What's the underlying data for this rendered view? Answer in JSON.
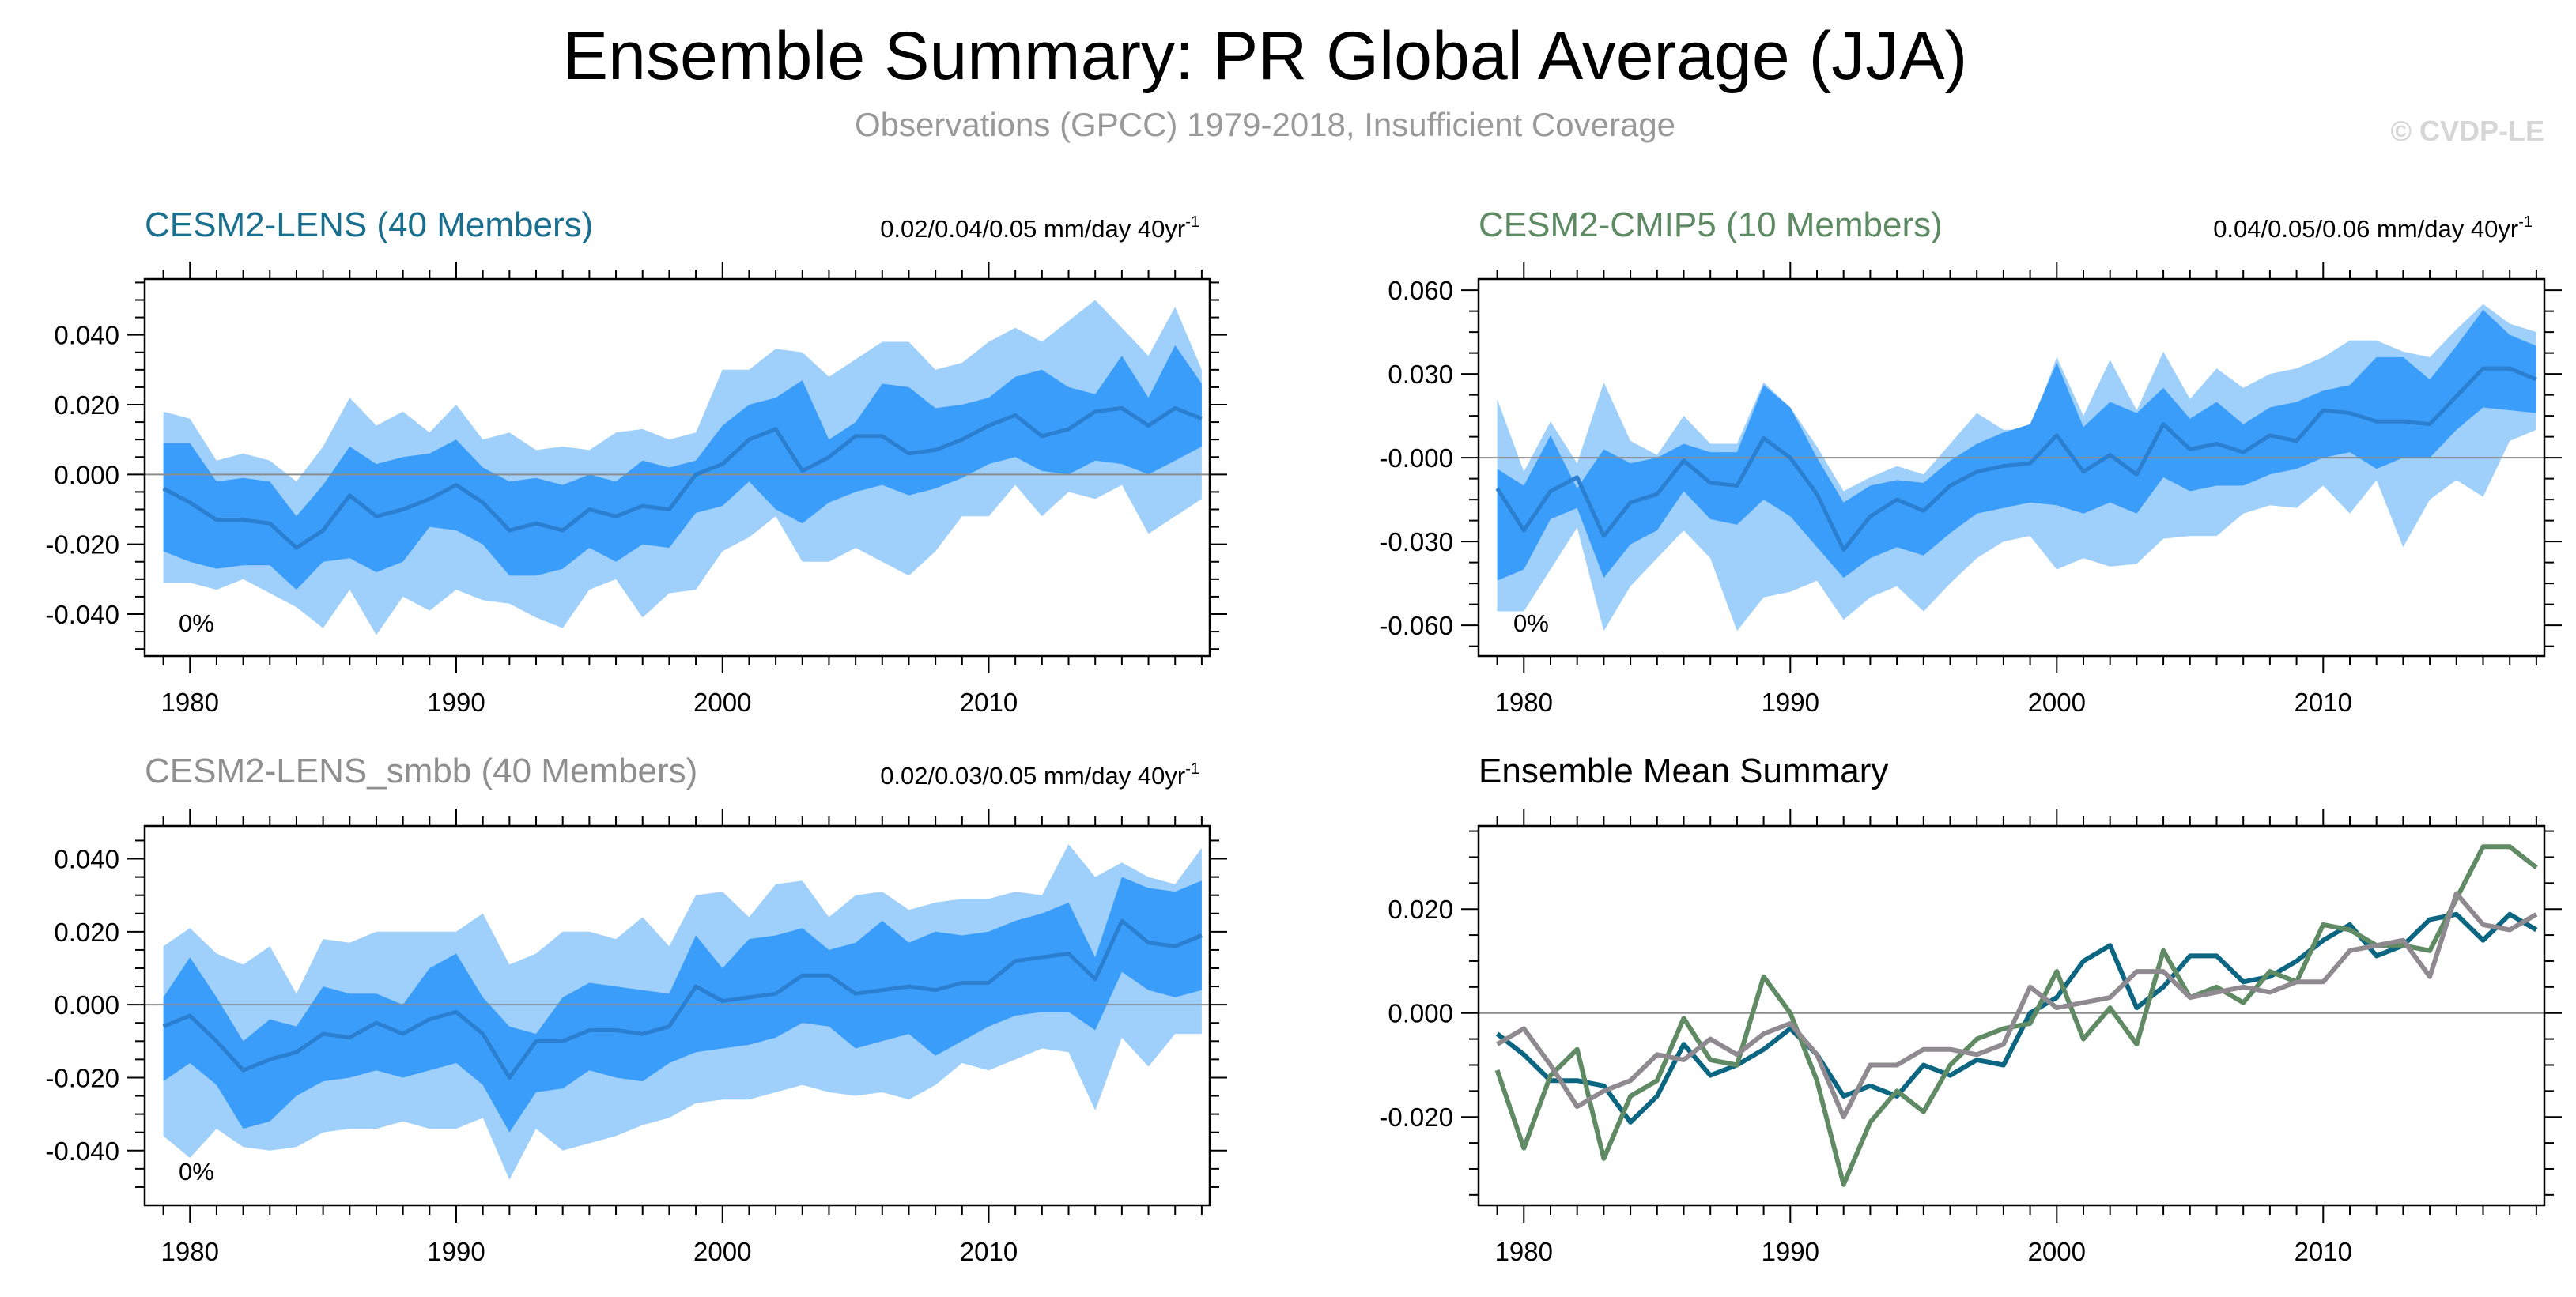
{
  "header": {
    "title": "Ensemble Summary: PR Global Average (JJA)",
    "subtitle": "Observations (GPCC) 1979-2018, Insufficient Coverage",
    "watermark": "© CVDP-LE"
  },
  "colors": {
    "cesm2_lens": "#1a6f8e",
    "cesm2_cmip5": "#5e8a63",
    "cesm2_lens_smbb": "#8f8f8f",
    "outer_band": "#9fd0fb",
    "inner_band": "#3b9dfa",
    "mean_line": "#2a7fd0",
    "mean_cesm2_lens": "#0c6682",
    "mean_cesm2_cmip5": "#5f8a63",
    "mean_cesm2_lens_smbb": "#8f8a8f"
  },
  "chart_data": [
    {
      "type": "area",
      "title": "CESM2-LENS (40 Members)",
      "stat_text": "0.02/0.04/0.05 mm/day 40yr",
      "stat_sup": "-1",
      "pct_text": "0%",
      "xlim": [
        1978.3,
        2018.3
      ],
      "ylim": [
        -0.052,
        0.056
      ],
      "xticks": [
        1980,
        1990,
        2000,
        2010
      ],
      "xtick_labels": [
        "1980",
        "1990",
        "2000",
        "2010"
      ],
      "yticks": [
        -0.04,
        -0.02,
        0.0,
        0.02,
        0.04
      ],
      "ytick_labels": [
        "-0.040",
        "-0.020",
        "0.000",
        "0.020",
        "0.040"
      ],
      "x": [
        1979,
        1980,
        1981,
        1982,
        1983,
        1984,
        1985,
        1986,
        1987,
        1988,
        1989,
        1990,
        1991,
        1992,
        1993,
        1994,
        1995,
        1996,
        1997,
        1998,
        1999,
        2000,
        2001,
        2002,
        2003,
        2004,
        2005,
        2006,
        2007,
        2008,
        2009,
        2010,
        2011,
        2012,
        2013,
        2014,
        2015,
        2016,
        2017,
        2018
      ],
      "outer_upper": [
        0.018,
        0.016,
        0.004,
        0.006,
        0.004,
        -0.002,
        0.008,
        0.022,
        0.014,
        0.018,
        0.012,
        0.02,
        0.01,
        0.012,
        0.007,
        0.008,
        0.007,
        0.012,
        0.013,
        0.01,
        0.012,
        0.03,
        0.03,
        0.036,
        0.035,
        0.028,
        0.033,
        0.038,
        0.038,
        0.03,
        0.032,
        0.038,
        0.042,
        0.038,
        0.044,
        0.05,
        0.042,
        0.034,
        0.048,
        0.03
      ],
      "inner_upper": [
        0.009,
        0.009,
        -0.002,
        -0.001,
        -0.002,
        -0.012,
        -0.003,
        0.008,
        0.003,
        0.005,
        0.006,
        0.01,
        0.002,
        -0.002,
        -0.001,
        -0.003,
        0.0,
        -0.002,
        0.004,
        0.002,
        0.004,
        0.014,
        0.02,
        0.022,
        0.027,
        0.01,
        0.015,
        0.026,
        0.025,
        0.019,
        0.02,
        0.022,
        0.028,
        0.03,
        0.025,
        0.023,
        0.034,
        0.022,
        0.037,
        0.026
      ],
      "mean": [
        -0.004,
        -0.008,
        -0.013,
        -0.013,
        -0.014,
        -0.021,
        -0.016,
        -0.006,
        -0.012,
        -0.01,
        -0.007,
        -0.003,
        -0.008,
        -0.016,
        -0.014,
        -0.016,
        -0.01,
        -0.012,
        -0.009,
        -0.01,
        0.0,
        0.003,
        0.01,
        0.013,
        0.001,
        0.005,
        0.011,
        0.011,
        0.006,
        0.007,
        0.01,
        0.014,
        0.017,
        0.011,
        0.013,
        0.018,
        0.019,
        0.014,
        0.019,
        0.016
      ],
      "inner_lower": [
        -0.022,
        -0.025,
        -0.027,
        -0.026,
        -0.026,
        -0.033,
        -0.025,
        -0.024,
        -0.028,
        -0.025,
        -0.015,
        -0.016,
        -0.02,
        -0.029,
        -0.029,
        -0.027,
        -0.021,
        -0.025,
        -0.02,
        -0.021,
        -0.011,
        -0.009,
        -0.002,
        -0.01,
        -0.014,
        -0.008,
        -0.005,
        -0.003,
        -0.006,
        -0.004,
        -0.001,
        0.003,
        0.005,
        0.001,
        0.0,
        0.004,
        0.003,
        0.0,
        0.004,
        0.008
      ],
      "outer_lower": [
        -0.031,
        -0.031,
        -0.033,
        -0.03,
        -0.034,
        -0.038,
        -0.044,
        -0.033,
        -0.046,
        -0.035,
        -0.039,
        -0.033,
        -0.036,
        -0.037,
        -0.041,
        -0.044,
        -0.033,
        -0.03,
        -0.041,
        -0.034,
        -0.033,
        -0.022,
        -0.018,
        -0.012,
        -0.025,
        -0.025,
        -0.021,
        -0.025,
        -0.029,
        -0.022,
        -0.012,
        -0.012,
        -0.003,
        -0.012,
        -0.005,
        -0.007,
        -0.003,
        -0.017,
        -0.012,
        -0.007
      ]
    },
    {
      "type": "area",
      "title": "CESM2-CMIP5 (10 Members)",
      "stat_text": "0.04/0.05/0.06 mm/day 40yr",
      "stat_sup": "-1",
      "pct_text": "0%",
      "xlim": [
        1978.3,
        2018.3
      ],
      "ylim": [
        -0.071,
        0.064
      ],
      "xticks": [
        1980,
        1990,
        2000,
        2010
      ],
      "xtick_labels": [
        "1980",
        "1990",
        "2000",
        "2010"
      ],
      "yticks": [
        -0.06,
        -0.03,
        0.0,
        0.03,
        0.06
      ],
      "ytick_labels": [
        "-0.060",
        "-0.030",
        "-0.000",
        "0.030",
        "0.060"
      ],
      "x": [
        1979,
        1980,
        1981,
        1982,
        1983,
        1984,
        1985,
        1986,
        1987,
        1988,
        1989,
        1990,
        1991,
        1992,
        1993,
        1994,
        1995,
        1996,
        1997,
        1998,
        1999,
        2000,
        2001,
        2002,
        2003,
        2004,
        2005,
        2006,
        2007,
        2008,
        2009,
        2010,
        2011,
        2012,
        2013,
        2014,
        2015,
        2016,
        2017,
        2018
      ],
      "outer_upper": [
        0.021,
        -0.005,
        0.013,
        -0.002,
        0.027,
        0.006,
        0.001,
        0.015,
        0.005,
        0.005,
        0.027,
        0.018,
        0.004,
        -0.012,
        -0.007,
        -0.003,
        -0.006,
        0.005,
        0.016,
        0.01,
        0.01,
        0.036,
        0.015,
        0.035,
        0.017,
        0.038,
        0.021,
        0.032,
        0.025,
        0.03,
        0.032,
        0.036,
        0.042,
        0.042,
        0.038,
        0.036,
        0.046,
        0.055,
        0.048,
        0.045
      ],
      "inner_upper": [
        -0.004,
        -0.01,
        0.008,
        -0.011,
        0.003,
        -0.002,
        0.0,
        0.005,
        0.002,
        0.002,
        0.026,
        0.018,
        0.0,
        -0.016,
        -0.01,
        -0.008,
        -0.009,
        -0.001,
        0.005,
        0.009,
        0.012,
        0.034,
        0.011,
        0.02,
        0.016,
        0.025,
        0.014,
        0.02,
        0.012,
        0.018,
        0.02,
        0.024,
        0.026,
        0.036,
        0.036,
        0.028,
        0.04,
        0.053,
        0.044,
        0.04
      ],
      "mean": [
        -0.011,
        -0.026,
        -0.012,
        -0.007,
        -0.028,
        -0.016,
        -0.013,
        -0.001,
        -0.009,
        -0.01,
        0.007,
        0.0,
        -0.013,
        -0.033,
        -0.021,
        -0.015,
        -0.019,
        -0.01,
        -0.005,
        -0.003,
        -0.002,
        0.008,
        -0.005,
        0.001,
        -0.006,
        0.012,
        0.003,
        0.005,
        0.002,
        0.008,
        0.006,
        0.017,
        0.016,
        0.013,
        0.013,
        0.012,
        0.022,
        0.032,
        0.032,
        0.028
      ],
      "inner_lower": [
        -0.044,
        -0.04,
        -0.022,
        -0.018,
        -0.043,
        -0.031,
        -0.026,
        -0.012,
        -0.022,
        -0.024,
        -0.015,
        -0.021,
        -0.032,
        -0.043,
        -0.036,
        -0.032,
        -0.035,
        -0.027,
        -0.02,
        -0.018,
        -0.016,
        -0.017,
        -0.02,
        -0.016,
        -0.02,
        -0.007,
        -0.012,
        -0.01,
        -0.01,
        -0.006,
        -0.004,
        0.0,
        0.002,
        -0.004,
        0.0,
        0.0,
        0.01,
        0.018,
        0.017,
        0.016
      ],
      "outer_lower": [
        -0.055,
        -0.055,
        -0.04,
        -0.025,
        -0.062,
        -0.046,
        -0.036,
        -0.026,
        -0.036,
        -0.062,
        -0.05,
        -0.048,
        -0.044,
        -0.058,
        -0.05,
        -0.046,
        -0.055,
        -0.045,
        -0.036,
        -0.03,
        -0.028,
        -0.04,
        -0.036,
        -0.039,
        -0.038,
        -0.029,
        -0.028,
        -0.028,
        -0.02,
        -0.017,
        -0.018,
        -0.01,
        -0.02,
        -0.008,
        -0.032,
        -0.015,
        -0.008,
        -0.014,
        0.006,
        0.01
      ]
    },
    {
      "type": "area",
      "title": "CESM2-LENS_smbb (40 Members)",
      "stat_text": "0.02/0.03/0.05 mm/day 40yr",
      "stat_sup": "-1",
      "pct_text": "0%",
      "xlim": [
        1978.3,
        2018.3
      ],
      "ylim": [
        -0.055,
        0.049
      ],
      "xticks": [
        1980,
        1990,
        2000,
        2010
      ],
      "xtick_labels": [
        "1980",
        "1990",
        "2000",
        "2010"
      ],
      "yticks": [
        -0.04,
        -0.02,
        0.0,
        0.02,
        0.04
      ],
      "ytick_labels": [
        "-0.040",
        "-0.020",
        "0.000",
        "0.020",
        "0.040"
      ],
      "x": [
        1979,
        1980,
        1981,
        1982,
        1983,
        1984,
        1985,
        1986,
        1987,
        1988,
        1989,
        1990,
        1991,
        1992,
        1993,
        1994,
        1995,
        1996,
        1997,
        1998,
        1999,
        2000,
        2001,
        2002,
        2003,
        2004,
        2005,
        2006,
        2007,
        2008,
        2009,
        2010,
        2011,
        2012,
        2013,
        2014,
        2015,
        2016,
        2017,
        2018
      ],
      "outer_upper": [
        0.016,
        0.021,
        0.014,
        0.011,
        0.016,
        0.003,
        0.018,
        0.017,
        0.02,
        0.02,
        0.02,
        0.02,
        0.025,
        0.011,
        0.014,
        0.02,
        0.02,
        0.018,
        0.024,
        0.016,
        0.03,
        0.031,
        0.024,
        0.033,
        0.034,
        0.024,
        0.03,
        0.031,
        0.026,
        0.028,
        0.029,
        0.029,
        0.031,
        0.03,
        0.044,
        0.035,
        0.039,
        0.035,
        0.033,
        0.043
      ],
      "inner_upper": [
        0.002,
        0.013,
        0.002,
        -0.01,
        -0.004,
        -0.006,
        0.005,
        0.003,
        0.003,
        0.0,
        0.01,
        0.014,
        0.002,
        -0.006,
        -0.008,
        0.002,
        0.006,
        0.005,
        0.004,
        0.003,
        0.019,
        0.01,
        0.018,
        0.019,
        0.021,
        0.015,
        0.017,
        0.023,
        0.017,
        0.02,
        0.019,
        0.02,
        0.023,
        0.025,
        0.028,
        0.013,
        0.035,
        0.032,
        0.031,
        0.034
      ],
      "mean": [
        -0.006,
        -0.003,
        -0.01,
        -0.018,
        -0.015,
        -0.013,
        -0.008,
        -0.009,
        -0.005,
        -0.008,
        -0.004,
        -0.002,
        -0.008,
        -0.02,
        -0.01,
        -0.01,
        -0.007,
        -0.007,
        -0.008,
        -0.006,
        0.005,
        0.001,
        0.002,
        0.003,
        0.008,
        0.008,
        0.003,
        0.004,
        0.005,
        0.004,
        0.006,
        0.006,
        0.012,
        0.013,
        0.014,
        0.007,
        0.023,
        0.017,
        0.016,
        0.019
      ],
      "inner_lower": [
        -0.021,
        -0.016,
        -0.022,
        -0.034,
        -0.032,
        -0.025,
        -0.021,
        -0.02,
        -0.018,
        -0.02,
        -0.018,
        -0.016,
        -0.022,
        -0.035,
        -0.024,
        -0.023,
        -0.018,
        -0.02,
        -0.021,
        -0.016,
        -0.013,
        -0.012,
        -0.011,
        -0.009,
        -0.005,
        -0.006,
        -0.012,
        -0.01,
        -0.008,
        -0.014,
        -0.01,
        -0.006,
        -0.003,
        -0.002,
        -0.002,
        -0.007,
        0.009,
        0.004,
        0.002,
        0.004
      ],
      "outer_lower": [
        -0.036,
        -0.042,
        -0.034,
        -0.039,
        -0.04,
        -0.039,
        -0.035,
        -0.034,
        -0.034,
        -0.032,
        -0.034,
        -0.034,
        -0.031,
        -0.048,
        -0.034,
        -0.04,
        -0.038,
        -0.036,
        -0.033,
        -0.031,
        -0.027,
        -0.026,
        -0.026,
        -0.024,
        -0.022,
        -0.024,
        -0.025,
        -0.024,
        -0.026,
        -0.022,
        -0.016,
        -0.018,
        -0.015,
        -0.012,
        -0.013,
        -0.029,
        -0.009,
        -0.017,
        -0.008,
        -0.008
      ]
    },
    {
      "type": "line",
      "title": "Ensemble Mean Summary",
      "xlim": [
        1978.3,
        2018.3
      ],
      "ylim": [
        -0.037,
        0.036
      ],
      "xticks": [
        1980,
        1990,
        2000,
        2010
      ],
      "xtick_labels": [
        "1980",
        "1990",
        "2000",
        "2010"
      ],
      "yticks": [
        -0.02,
        0.0,
        0.02
      ],
      "ytick_labels": [
        "-0.020",
        "0.000",
        "0.020"
      ],
      "x": [
        1979,
        1980,
        1981,
        1982,
        1983,
        1984,
        1985,
        1986,
        1987,
        1988,
        1989,
        1990,
        1991,
        1992,
        1993,
        1994,
        1995,
        1996,
        1997,
        1998,
        1999,
        2000,
        2001,
        2002,
        2003,
        2004,
        2005,
        2006,
        2007,
        2008,
        2009,
        2010,
        2011,
        2012,
        2013,
        2014,
        2015,
        2016,
        2017,
        2018
      ],
      "series": [
        {
          "name": "CESM2-LENS",
          "values": [
            -0.004,
            -0.008,
            -0.013,
            -0.013,
            -0.014,
            -0.021,
            -0.016,
            -0.006,
            -0.012,
            -0.01,
            -0.007,
            -0.003,
            -0.008,
            -0.016,
            -0.014,
            -0.016,
            -0.01,
            -0.012,
            -0.009,
            -0.01,
            0.0,
            0.003,
            0.01,
            0.013,
            0.001,
            0.005,
            0.011,
            0.011,
            0.006,
            0.007,
            0.01,
            0.014,
            0.017,
            0.011,
            0.013,
            0.018,
            0.019,
            0.014,
            0.019,
            0.016
          ]
        },
        {
          "name": "CESM2-CMIP5",
          "values": [
            -0.011,
            -0.026,
            -0.012,
            -0.007,
            -0.028,
            -0.016,
            -0.013,
            -0.001,
            -0.009,
            -0.01,
            0.007,
            0.0,
            -0.013,
            -0.033,
            -0.021,
            -0.015,
            -0.019,
            -0.01,
            -0.005,
            -0.003,
            -0.002,
            0.008,
            -0.005,
            0.001,
            -0.006,
            0.012,
            0.003,
            0.005,
            0.002,
            0.008,
            0.006,
            0.017,
            0.016,
            0.013,
            0.013,
            0.012,
            0.022,
            0.032,
            0.032,
            0.028
          ]
        },
        {
          "name": "CESM2-LENS_smbb",
          "values": [
            -0.006,
            -0.003,
            -0.01,
            -0.018,
            -0.015,
            -0.013,
            -0.008,
            -0.009,
            -0.005,
            -0.008,
            -0.004,
            -0.002,
            -0.008,
            -0.02,
            -0.01,
            -0.01,
            -0.007,
            -0.007,
            -0.008,
            -0.006,
            0.005,
            0.001,
            0.002,
            0.003,
            0.008,
            0.008,
            0.003,
            0.004,
            0.005,
            0.004,
            0.006,
            0.006,
            0.012,
            0.013,
            0.014,
            0.007,
            0.023,
            0.017,
            0.016,
            0.019
          ]
        }
      ]
    }
  ]
}
